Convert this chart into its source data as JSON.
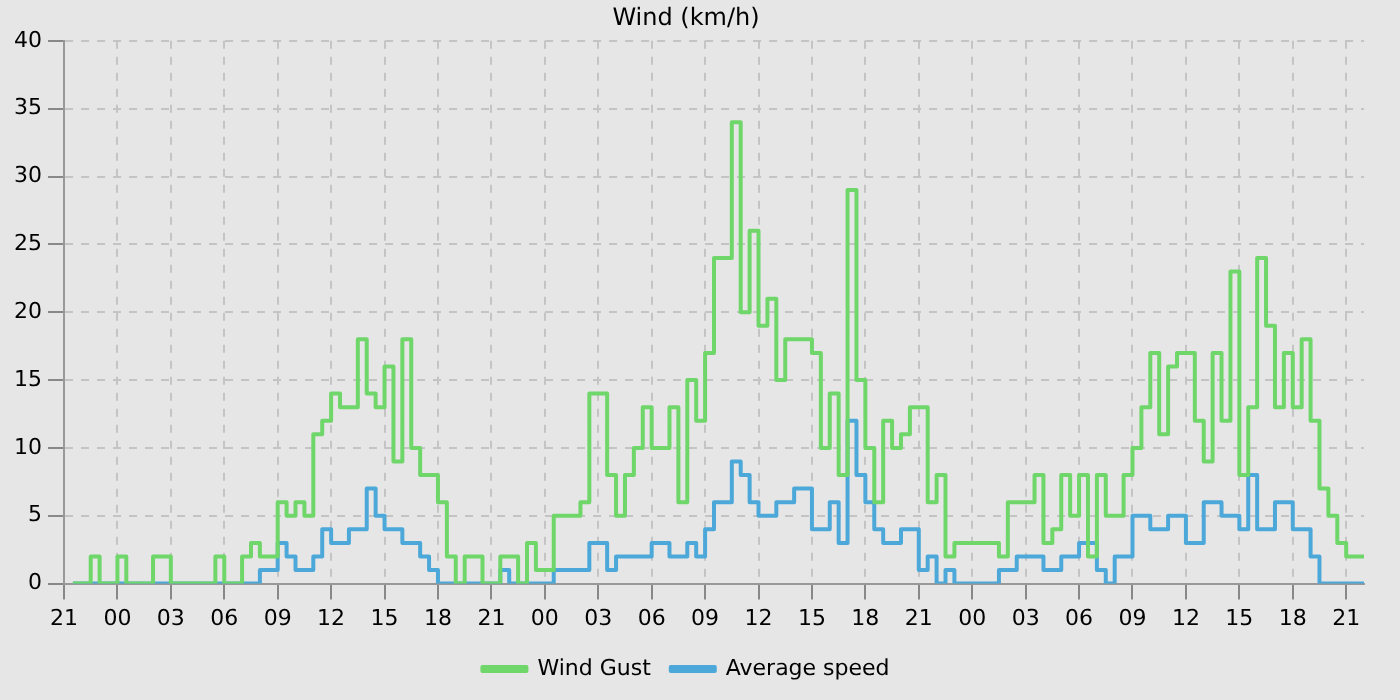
{
  "chart_data": {
    "type": "step",
    "title": "Wind (km/h)",
    "categories": [
      "21",
      null,
      null,
      null,
      null,
      null,
      "00",
      null,
      null,
      null,
      null,
      null,
      "03",
      null,
      null,
      null,
      null,
      null,
      "06",
      null,
      null,
      null,
      null,
      null,
      "09",
      null,
      null,
      null,
      null,
      null,
      "12",
      null,
      null,
      null,
      null,
      null,
      "15",
      null,
      null,
      null,
      null,
      null,
      "18",
      null,
      null,
      null,
      null,
      null,
      "21",
      null,
      null,
      null,
      null,
      null,
      "00",
      null,
      null,
      null,
      null,
      null,
      "03",
      null,
      null,
      null,
      null,
      null,
      "06",
      null,
      null,
      null,
      null,
      null,
      "09",
      null,
      null,
      null,
      null,
      null,
      "12",
      null,
      null,
      null,
      null,
      null,
      "15",
      null,
      null,
      null,
      null,
      null,
      "18",
      null,
      null,
      null,
      null,
      null,
      "21",
      null,
      null,
      null,
      null,
      null,
      "00",
      null,
      null,
      null,
      null,
      null,
      "03",
      null,
      null,
      null,
      null,
      null,
      "06",
      null,
      null,
      null,
      null,
      null,
      "09",
      null,
      null,
      null,
      null,
      null,
      "12",
      null,
      null,
      null,
      null,
      null,
      "15",
      null,
      null,
      null,
      null,
      null,
      "18",
      null,
      null,
      null,
      null,
      null,
      "21",
      null,
      null
    ],
    "ylim": [
      0,
      40
    ],
    "yticks": [
      0,
      5,
      10,
      15,
      20,
      25,
      30,
      35,
      40
    ],
    "grid": true,
    "legend": "bottom",
    "marker": "none",
    "line_style": "solid",
    "series": [
      {
        "name": "Wind Gust",
        "color": "#6fd66a",
        "values": [
          null,
          0,
          0,
          2,
          0,
          0,
          2,
          0,
          0,
          0,
          2,
          2,
          0,
          0,
          0,
          0,
          0,
          2,
          0,
          0,
          2,
          3,
          2,
          2,
          6,
          5,
          6,
          5,
          11,
          12,
          14,
          13,
          13,
          18,
          14,
          13,
          16,
          9,
          18,
          10,
          8,
          8,
          6,
          2,
          0,
          2,
          2,
          0,
          0,
          2,
          2,
          0,
          3,
          1,
          1,
          5,
          5,
          5,
          6,
          14,
          14,
          8,
          5,
          8,
          10,
          13,
          10,
          10,
          13,
          6,
          15,
          12,
          17,
          24,
          24,
          34,
          20,
          26,
          19,
          21,
          15,
          18,
          18,
          18,
          17,
          10,
          14,
          8,
          29,
          15,
          10,
          6,
          12,
          10,
          11,
          13,
          13,
          6,
          8,
          2,
          3,
          3,
          3,
          3,
          3,
          2,
          6,
          6,
          6,
          8,
          3,
          4,
          8,
          5,
          8,
          2,
          8,
          5,
          5,
          8,
          10,
          13,
          17,
          11,
          16,
          17,
          17,
          12,
          9,
          17,
          12,
          23,
          8,
          13,
          24,
          19,
          13,
          17,
          13,
          18,
          12,
          7,
          5,
          3,
          2,
          2,
          2
        ]
      },
      {
        "name": "Average speed",
        "color": "#4ba8d9",
        "values": [
          null,
          0,
          0,
          0,
          0,
          0,
          0,
          0,
          0,
          0,
          0,
          0,
          0,
          0,
          0,
          0,
          0,
          0,
          0,
          0,
          0,
          0,
          1,
          1,
          3,
          2,
          1,
          1,
          2,
          4,
          3,
          3,
          4,
          4,
          7,
          5,
          4,
          4,
          3,
          3,
          2,
          1,
          0,
          0,
          0,
          0,
          0,
          0,
          0,
          1,
          0,
          0,
          0,
          0,
          0,
          1,
          1,
          1,
          1,
          3,
          3,
          1,
          2,
          2,
          2,
          2,
          3,
          3,
          2,
          2,
          3,
          2,
          4,
          6,
          6,
          9,
          8,
          6,
          5,
          5,
          6,
          6,
          7,
          7,
          4,
          4,
          6,
          3,
          12,
          8,
          6,
          4,
          3,
          3,
          4,
          4,
          1,
          2,
          0,
          1,
          0,
          0,
          0,
          0,
          0,
          1,
          1,
          2,
          2,
          2,
          1,
          1,
          2,
          2,
          3,
          3,
          1,
          0,
          2,
          2,
          5,
          5,
          4,
          4,
          5,
          5,
          3,
          3,
          6,
          6,
          5,
          5,
          4,
          8,
          4,
          4,
          6,
          6,
          4,
          4,
          2,
          0,
          0,
          0,
          0,
          0,
          0
        ]
      }
    ]
  }
}
